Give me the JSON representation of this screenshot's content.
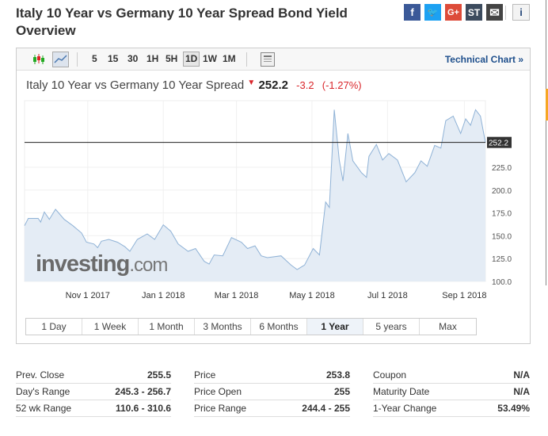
{
  "title": "Italy 10 Year vs Germany 10 Year Spread Bond Yield Overview",
  "share": [
    {
      "icon": "facebook-icon",
      "label": "f",
      "color": "#3b5998"
    },
    {
      "icon": "twitter-icon",
      "label": "🐦",
      "color": "#1da1f2"
    },
    {
      "icon": "google-plus-icon",
      "label": "G+",
      "color": "#dd4b39"
    },
    {
      "icon": "stocktwits-icon",
      "label": "ST",
      "color": "#3c4b5e"
    },
    {
      "icon": "email-icon",
      "label": "✉",
      "color": "#444"
    }
  ],
  "info_label": "i",
  "toolbar": {
    "intervals": [
      "5",
      "15",
      "30",
      "1H",
      "5H",
      "1D",
      "1W",
      "1M"
    ],
    "selected": "1D",
    "technical_chart": "Technical Chart »"
  },
  "quote": {
    "name": "Italy 10 Year vs Germany 10 Year Spread",
    "arrow": "▼",
    "price": "252.2",
    "change": "-3.2",
    "change_pct": "(-1.27%)"
  },
  "watermark": "investing",
  "watermark_suffix": ".com",
  "ranges": [
    "1 Day",
    "1 Week",
    "1 Month",
    "3 Months",
    "6 Months",
    "1 Year",
    "5 years",
    "Max"
  ],
  "selected_range": "1 Year",
  "chart_data": {
    "type": "area",
    "xunit": "days since Nov 1 2017",
    "current": 252.2,
    "current_label": "252.2",
    "ylim": [
      100,
      300
    ],
    "yticks": [
      100,
      125,
      150,
      175,
      200,
      225
    ],
    "ytick_labels": [
      "100.0",
      "125.0",
      "150.0",
      "175.0",
      "200.0",
      "225.0"
    ],
    "xlim": [
      -51,
      321
    ],
    "xticks": [
      0,
      61,
      120,
      181,
      242,
      304
    ],
    "xtick_labels": [
      "Nov 1 2017",
      "Jan 1 2018",
      "Mar 1 2018",
      "May 1 2018",
      "Jul 1 2018",
      "Sep 1 2018"
    ],
    "x": [
      -51,
      -48,
      -40,
      -38,
      -35,
      -31,
      -26,
      -19,
      -12,
      -5,
      -1,
      5,
      8,
      11,
      17,
      24,
      30,
      34,
      40,
      48,
      54,
      61,
      67,
      73,
      81,
      87,
      94,
      98,
      102,
      109,
      116,
      124,
      129,
      135,
      140,
      145,
      156,
      164,
      169,
      175,
      182,
      187,
      192,
      195,
      199,
      203,
      206,
      210,
      214,
      221,
      225,
      227,
      233,
      238,
      243,
      250,
      257,
      264,
      269,
      274,
      280,
      285,
      289,
      295,
      301,
      305,
      309,
      313,
      317,
      321
    ],
    "y": [
      161,
      169,
      169,
      165,
      176,
      168,
      179,
      168,
      161,
      153,
      143,
      141,
      137,
      144,
      146,
      143,
      138,
      133,
      146,
      152,
      146,
      162,
      155,
      141,
      133,
      136,
      122,
      119,
      129,
      128,
      148,
      143,
      136,
      139,
      128,
      126,
      128,
      118,
      113,
      118,
      136,
      129,
      187,
      181,
      288,
      233,
      210,
      262,
      232,
      219,
      214,
      237,
      250,
      233,
      240,
      233,
      209,
      219,
      232,
      226,
      249,
      246,
      276,
      281,
      262,
      278,
      271,
      288,
      281,
      252
    ]
  },
  "stats": [
    [
      {
        "label": "Prev. Close",
        "value": "255.5"
      },
      {
        "label": "Day's Range",
        "value": "245.3 - 256.7"
      },
      {
        "label": "52 wk Range",
        "value": "110.6 - 310.6"
      }
    ],
    [
      {
        "label": "Price",
        "value": "253.8"
      },
      {
        "label": "Price Open",
        "value": "255"
      },
      {
        "label": "Price Range",
        "value": "244.4 - 255"
      }
    ],
    [
      {
        "label": "Coupon",
        "value": "N/A"
      },
      {
        "label": "Maturity Date",
        "value": "N/A"
      },
      {
        "label": "1-Year Change",
        "value": "53.49%"
      }
    ]
  ]
}
